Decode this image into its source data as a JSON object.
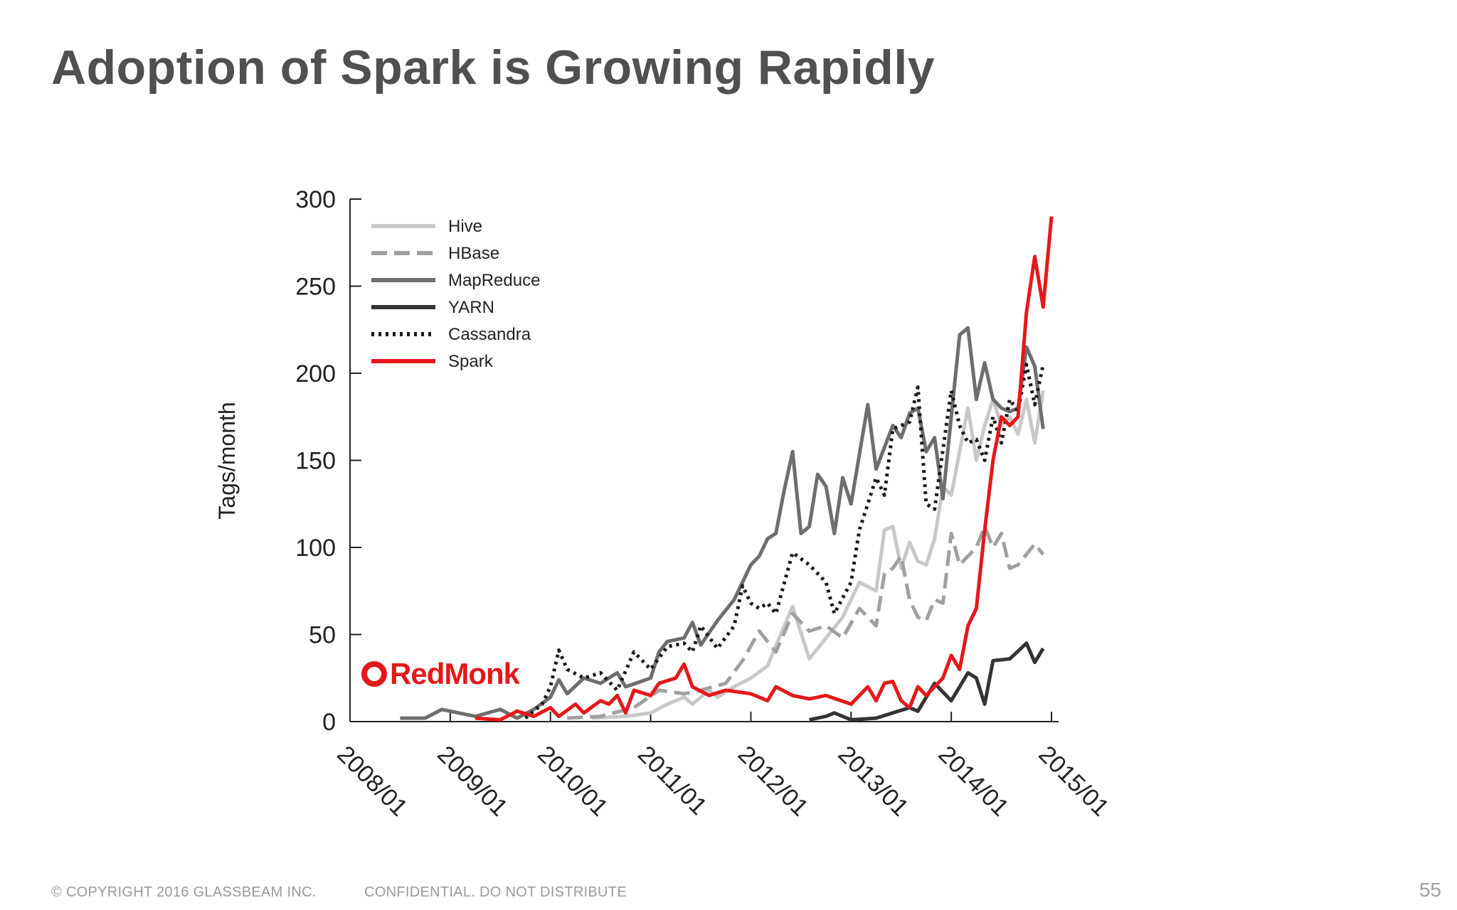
{
  "slide": {
    "title": "Adoption of Spark is Growing Rapidly",
    "footer_copyright": "© COPYRIGHT 2016  GLASSBEAM INC.",
    "footer_confidential": "CONFIDENTIAL. DO NOT DISTRIBUTE",
    "page_number": "55",
    "watermark": "RedMonk"
  },
  "chart_data": {
    "type": "line",
    "title": "",
    "xlabel": "",
    "ylabel": "Tags/month",
    "ylim": [
      0,
      300
    ],
    "yticks": [
      0,
      50,
      100,
      150,
      200,
      250,
      300
    ],
    "xlim": [
      "2008/01",
      "2015/01"
    ],
    "xticks": [
      "2008/01",
      "2009/01",
      "2010/01",
      "2011/01",
      "2012/01",
      "2013/01",
      "2014/01",
      "2015/01"
    ],
    "legend_position": "top-left",
    "series": [
      {
        "name": "Hive",
        "color": "#c8c8c8",
        "style": "solid",
        "points": [
          [
            "2010/06",
            2
          ],
          [
            "2010/10",
            3
          ],
          [
            "2011/01",
            5
          ],
          [
            "2011/03",
            10
          ],
          [
            "2011/05",
            14
          ],
          [
            "2011/06",
            10
          ],
          [
            "2011/08",
            18
          ],
          [
            "2011/09",
            14
          ],
          [
            "2011/11",
            20
          ],
          [
            "2012/01",
            25
          ],
          [
            "2012/03",
            32
          ],
          [
            "2012/05",
            55
          ],
          [
            "2012/06",
            66
          ],
          [
            "2012/08",
            36
          ],
          [
            "2012/10",
            48
          ],
          [
            "2012/12",
            60
          ],
          [
            "2013/02",
            80
          ],
          [
            "2013/04",
            75
          ],
          [
            "2013/05",
            110
          ],
          [
            "2013/06",
            112
          ],
          [
            "2013/07",
            88
          ],
          [
            "2013/08",
            103
          ],
          [
            "2013/09",
            92
          ],
          [
            "2013/10",
            90
          ],
          [
            "2013/11",
            105
          ],
          [
            "2013/12",
            135
          ],
          [
            "2014/01",
            130
          ],
          [
            "2014/02",
            155
          ],
          [
            "2014/03",
            180
          ],
          [
            "2014/04",
            150
          ],
          [
            "2014/05",
            170
          ],
          [
            "2014/06",
            185
          ],
          [
            "2014/07",
            170
          ],
          [
            "2014/08",
            175
          ],
          [
            "2014/09",
            165
          ],
          [
            "2014/10",
            185
          ],
          [
            "2014/11",
            160
          ],
          [
            "2014/12",
            190
          ]
        ]
      },
      {
        "name": "HBase",
        "color": "#a0a0a0",
        "style": "dashed",
        "points": [
          [
            "2010/03",
            2
          ],
          [
            "2010/07",
            3
          ],
          [
            "2010/11",
            8
          ],
          [
            "2011/02",
            18
          ],
          [
            "2011/05",
            16
          ],
          [
            "2011/07",
            18
          ],
          [
            "2011/10",
            22
          ],
          [
            "2011/12",
            35
          ],
          [
            "2012/02",
            52
          ],
          [
            "2012/04",
            40
          ],
          [
            "2012/06",
            62
          ],
          [
            "2012/08",
            52
          ],
          [
            "2012/10",
            55
          ],
          [
            "2012/12",
            48
          ],
          [
            "2013/02",
            65
          ],
          [
            "2013/04",
            55
          ],
          [
            "2013/05",
            85
          ],
          [
            "2013/06",
            88
          ],
          [
            "2013/07",
            95
          ],
          [
            "2013/08",
            70
          ],
          [
            "2013/09",
            60
          ],
          [
            "2013/10",
            58
          ],
          [
            "2013/11",
            70
          ],
          [
            "2013/12",
            68
          ],
          [
            "2014/01",
            108
          ],
          [
            "2014/02",
            90
          ],
          [
            "2014/04",
            100
          ],
          [
            "2014/05",
            112
          ],
          [
            "2014/06",
            100
          ],
          [
            "2014/07",
            108
          ],
          [
            "2014/08",
            88
          ],
          [
            "2014/09",
            90
          ],
          [
            "2014/11",
            102
          ],
          [
            "2014/12",
            96
          ]
        ]
      },
      {
        "name": "MapReduce",
        "color": "#6e6e6e",
        "style": "solid",
        "points": [
          [
            "2008/07",
            2
          ],
          [
            "2008/10",
            2
          ],
          [
            "2008/12",
            7
          ],
          [
            "2009/02",
            5
          ],
          [
            "2009/04",
            3
          ],
          [
            "2009/07",
            7
          ],
          [
            "2009/09",
            2
          ],
          [
            "2009/11",
            7
          ],
          [
            "2010/01",
            14
          ],
          [
            "2010/02",
            24
          ],
          [
            "2010/03",
            16
          ],
          [
            "2010/05",
            25
          ],
          [
            "2010/07",
            22
          ],
          [
            "2010/09",
            28
          ],
          [
            "2010/10",
            20
          ],
          [
            "2011/01",
            25
          ],
          [
            "2011/02",
            40
          ],
          [
            "2011/03",
            46
          ],
          [
            "2011/05",
            48
          ],
          [
            "2011/06",
            57
          ],
          [
            "2011/07",
            44
          ],
          [
            "2011/09",
            58
          ],
          [
            "2011/11",
            70
          ],
          [
            "2012/01",
            90
          ],
          [
            "2012/02",
            95
          ],
          [
            "2012/03",
            105
          ],
          [
            "2012/04",
            108
          ],
          [
            "2012/05",
            133
          ],
          [
            "2012/06",
            155
          ],
          [
            "2012/07",
            108
          ],
          [
            "2012/08",
            112
          ],
          [
            "2012/09",
            142
          ],
          [
            "2012/10",
            135
          ],
          [
            "2012/11",
            108
          ],
          [
            "2012/12",
            140
          ],
          [
            "2013/01",
            125
          ],
          [
            "2013/03",
            182
          ],
          [
            "2013/04",
            145
          ],
          [
            "2013/06",
            170
          ],
          [
            "2013/07",
            163
          ],
          [
            "2013/08",
            177
          ],
          [
            "2013/09",
            180
          ],
          [
            "2013/10",
            155
          ],
          [
            "2013/11",
            163
          ],
          [
            "2013/12",
            128
          ],
          [
            "2014/02",
            222
          ],
          [
            "2014/03",
            226
          ],
          [
            "2014/04",
            185
          ],
          [
            "2014/05",
            206
          ],
          [
            "2014/06",
            185
          ],
          [
            "2014/07",
            180
          ],
          [
            "2014/08",
            178
          ],
          [
            "2014/09",
            180
          ],
          [
            "2014/10",
            215
          ],
          [
            "2014/11",
            204
          ],
          [
            "2014/12",
            168
          ]
        ]
      },
      {
        "name": "YARN",
        "color": "#333333",
        "style": "solid",
        "points": [
          [
            "2012/08",
            1
          ],
          [
            "2012/10",
            3
          ],
          [
            "2012/11",
            5
          ],
          [
            "2013/01",
            1
          ],
          [
            "2013/04",
            2
          ],
          [
            "2013/06",
            5
          ],
          [
            "2013/08",
            8
          ],
          [
            "2013/09",
            6
          ],
          [
            "2013/11",
            22
          ],
          [
            "2014/01",
            12
          ],
          [
            "2014/02",
            20
          ],
          [
            "2014/03",
            28
          ],
          [
            "2014/04",
            25
          ],
          [
            "2014/05",
            10
          ],
          [
            "2014/06",
            35
          ],
          [
            "2014/08",
            36
          ],
          [
            "2014/10",
            45
          ],
          [
            "2014/11",
            34
          ],
          [
            "2014/12",
            42
          ]
        ]
      },
      {
        "name": "Cassandra",
        "color": "#1a1a1a",
        "style": "dotted",
        "points": [
          [
            "2009/10",
            2
          ],
          [
            "2009/12",
            10
          ],
          [
            "2010/01",
            20
          ],
          [
            "2010/02",
            41
          ],
          [
            "2010/03",
            30
          ],
          [
            "2010/05",
            25
          ],
          [
            "2010/07",
            28
          ],
          [
            "2010/09",
            18
          ],
          [
            "2010/11",
            40
          ],
          [
            "2011/01",
            30
          ],
          [
            "2011/03",
            43
          ],
          [
            "2011/05",
            45
          ],
          [
            "2011/06",
            40
          ],
          [
            "2011/07",
            55
          ],
          [
            "2011/09",
            42
          ],
          [
            "2011/11",
            55
          ],
          [
            "2011/12",
            78
          ],
          [
            "2012/01",
            68
          ],
          [
            "2012/02",
            65
          ],
          [
            "2012/03",
            68
          ],
          [
            "2012/04",
            62
          ],
          [
            "2012/06",
            97
          ],
          [
            "2012/08",
            90
          ],
          [
            "2012/10",
            80
          ],
          [
            "2012/11",
            62
          ],
          [
            "2013/01",
            80
          ],
          [
            "2013/02",
            110
          ],
          [
            "2013/03",
            125
          ],
          [
            "2013/04",
            140
          ],
          [
            "2013/05",
            130
          ],
          [
            "2013/06",
            168
          ],
          [
            "2013/08",
            172
          ],
          [
            "2013/09",
            192
          ],
          [
            "2013/10",
            125
          ],
          [
            "2013/11",
            122
          ],
          [
            "2014/01",
            190
          ],
          [
            "2014/02",
            170
          ],
          [
            "2014/03",
            160
          ],
          [
            "2014/04",
            162
          ],
          [
            "2014/05",
            150
          ],
          [
            "2014/06",
            175
          ],
          [
            "2014/07",
            160
          ],
          [
            "2014/08",
            185
          ],
          [
            "2014/09",
            178
          ],
          [
            "2014/10",
            205
          ],
          [
            "2014/11",
            182
          ],
          [
            "2014/12",
            205
          ]
        ]
      },
      {
        "name": "Spark",
        "color": "#e4181a",
        "style": "solid",
        "points": [
          [
            "2009/04",
            2
          ],
          [
            "2009/07",
            1
          ],
          [
            "2009/09",
            6
          ],
          [
            "2009/11",
            3
          ],
          [
            "2010/01",
            8
          ],
          [
            "2010/02",
            3
          ],
          [
            "2010/04",
            10
          ],
          [
            "2010/05",
            5
          ],
          [
            "2010/07",
            12
          ],
          [
            "2010/08",
            10
          ],
          [
            "2010/09",
            15
          ],
          [
            "2010/10",
            5
          ],
          [
            "2010/11",
            18
          ],
          [
            "2011/01",
            15
          ],
          [
            "2011/02",
            22
          ],
          [
            "2011/04",
            25
          ],
          [
            "2011/05",
            33
          ],
          [
            "2011/06",
            20
          ],
          [
            "2011/08",
            15
          ],
          [
            "2011/10",
            18
          ],
          [
            "2012/01",
            16
          ],
          [
            "2012/03",
            12
          ],
          [
            "2012/04",
            20
          ],
          [
            "2012/06",
            15
          ],
          [
            "2012/08",
            13
          ],
          [
            "2012/10",
            15
          ],
          [
            "2013/01",
            10
          ],
          [
            "2013/03",
            20
          ],
          [
            "2013/04",
            12
          ],
          [
            "2013/05",
            22
          ],
          [
            "2013/06",
            23
          ],
          [
            "2013/07",
            12
          ],
          [
            "2013/08",
            8
          ],
          [
            "2013/09",
            20
          ],
          [
            "2013/10",
            15
          ],
          [
            "2013/12",
            25
          ],
          [
            "2014/01",
            38
          ],
          [
            "2014/02",
            30
          ],
          [
            "2014/03",
            55
          ],
          [
            "2014/04",
            65
          ],
          [
            "2014/05",
            110
          ],
          [
            "2014/06",
            150
          ],
          [
            "2014/07",
            175
          ],
          [
            "2014/08",
            170
          ],
          [
            "2014/09",
            175
          ],
          [
            "2014/10",
            235
          ],
          [
            "2014/11",
            267
          ],
          [
            "2014/12",
            238
          ],
          [
            "2015/01",
            290
          ]
        ]
      }
    ]
  }
}
